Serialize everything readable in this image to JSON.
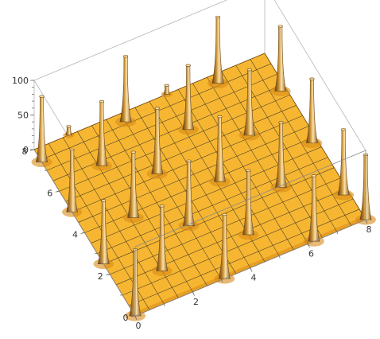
{
  "chart_data": {
    "type": "surface3d",
    "title": "",
    "xlabel": "",
    "ylabel": "",
    "zlabel": "",
    "xlim": [
      0,
      8
    ],
    "ylim": [
      0,
      8
    ],
    "zlim": [
      0,
      100
    ],
    "x_ticks": [
      "0",
      "2",
      "4",
      "6",
      "8"
    ],
    "y_ticks": [
      "0",
      "2",
      "4",
      "6",
      "8"
    ],
    "z_ticks": [
      "0",
      "50",
      "100"
    ],
    "mesh_lines": 16,
    "colors": {
      "surface": "#f6b631",
      "surface_dark": "#d98a17",
      "spike_light": "#fbe2a6",
      "spike_dark": "#6b4a1e",
      "mesh": "#2b2b2b",
      "box": "#8a8a8a"
    },
    "peaks": [
      {
        "x": 0.0,
        "y": 0.0,
        "z": 98
      },
      {
        "x": 0.0,
        "y": 2.5,
        "z": 94
      },
      {
        "x": 0.0,
        "y": 5.0,
        "z": 92
      },
      {
        "x": 0.0,
        "y": 7.4,
        "z": 97
      },
      {
        "x": 1.2,
        "y": 8.0,
        "z": 15
      },
      {
        "x": 1.5,
        "y": 1.3,
        "z": 96
      },
      {
        "x": 1.6,
        "y": 3.8,
        "z": 97
      },
      {
        "x": 1.6,
        "y": 6.3,
        "z": 95
      },
      {
        "x": 3.1,
        "y": 0.0,
        "z": 95
      },
      {
        "x": 3.0,
        "y": 2.6,
        "z": 96
      },
      {
        "x": 3.0,
        "y": 5.1,
        "z": 97
      },
      {
        "x": 3.0,
        "y": 7.6,
        "z": 97
      },
      {
        "x": 4.5,
        "y": 1.3,
        "z": 95
      },
      {
        "x": 4.6,
        "y": 3.8,
        "z": 96
      },
      {
        "x": 4.6,
        "y": 6.3,
        "z": 95
      },
      {
        "x": 4.6,
        "y": 8.0,
        "z": 15
      },
      {
        "x": 6.2,
        "y": 0.0,
        "z": 97
      },
      {
        "x": 6.2,
        "y": 2.6,
        "z": 96
      },
      {
        "x": 6.2,
        "y": 5.1,
        "z": 97
      },
      {
        "x": 6.2,
        "y": 7.6,
        "z": 98
      },
      {
        "x": 8.0,
        "y": 0.0,
        "z": 96
      },
      {
        "x": 7.8,
        "y": 1.3,
        "z": 97
      },
      {
        "x": 7.8,
        "y": 3.8,
        "z": 95
      },
      {
        "x": 7.8,
        "y": 6.3,
        "z": 96
      }
    ]
  }
}
